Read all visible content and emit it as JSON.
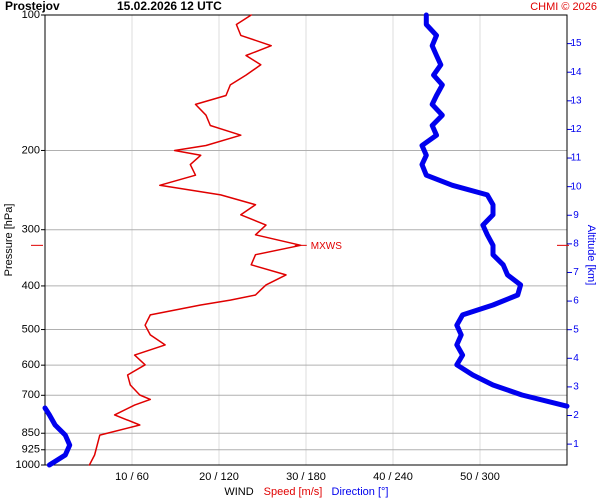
{
  "chart_data": {
    "type": "line",
    "station": "Prostejov",
    "title": "15.02.2026 12 UTC",
    "credit": "CHMI © 2026",
    "ylabel": "Pressure [hPa]",
    "y2label": "Altitude [km]",
    "xlabel": "WIND",
    "xlabel_speed": "Speed [m/s]",
    "xlabel_direction": "Direction [°]",
    "ylim": [
      1000,
      100
    ],
    "log_y": true,
    "yticks": [
      100,
      200,
      300,
      400,
      500,
      600,
      700,
      850,
      925,
      1000
    ],
    "y2lim": [
      0.27,
      16.0
    ],
    "y2ticks": [
      1,
      2,
      3,
      4,
      5,
      6,
      7,
      8,
      9,
      10,
      11,
      12,
      13,
      14,
      15
    ],
    "xlim": [
      0,
      60
    ],
    "x2lim": [
      0,
      360
    ],
    "xticks": [
      {
        "value": 10,
        "label": "10 / 60"
      },
      {
        "value": 20,
        "label": "20 / 120"
      },
      {
        "value": 30,
        "label": "30 / 180"
      },
      {
        "value": 40,
        "label": "40 / 240"
      },
      {
        "value": 50,
        "label": "50 / 300"
      }
    ],
    "grid": true,
    "annotation": {
      "text": "MXWS",
      "pressure": 325,
      "speed": 29.4
    },
    "series": [
      {
        "name": "Speed [m/s]",
        "color": "#e00000",
        "axis": "x",
        "pressure": [
          1000,
          950,
          903,
          858,
          815,
          774,
          736,
          715,
          699,
          664,
          631,
          599,
          570,
          541,
          514,
          489,
          464,
          441,
          430,
          419,
          408,
          398,
          378,
          359,
          341,
          325,
          308,
          293,
          278,
          264,
          251,
          239,
          227,
          215,
          205,
          200,
          195,
          185,
          176,
          167,
          158,
          151,
          143,
          136,
          129,
          123,
          117,
          111,
          105,
          100
        ],
        "values": [
          5.1,
          5.7,
          6.0,
          6.3,
          10.9,
          8.0,
          10.3,
          12.1,
          10.9,
          9.8,
          9.5,
          11.5,
          10.3,
          13.8,
          12.1,
          11.5,
          12.1,
          17.9,
          21.3,
          24.2,
          24.8,
          25.4,
          27.7,
          23.7,
          24.2,
          29.4,
          24.2,
          25.4,
          22.5,
          24.2,
          20.2,
          13.2,
          17.3,
          16.7,
          17.9,
          14.9,
          18.5,
          22.5,
          19.0,
          18.5,
          17.3,
          20.8,
          21.3,
          23.1,
          24.8,
          23.1,
          26.0,
          22.5,
          22.0,
          23.7
        ]
      },
      {
        "name": "Direction [°]",
        "color": "#0000ee",
        "axis": "x2",
        "pressure": [
          1000,
          950,
          903,
          858,
          815,
          774,
          747,
          745,
          740,
          699,
          664,
          631,
          599,
          570,
          541,
          514,
          489,
          464,
          441,
          419,
          398,
          378,
          359,
          341,
          325,
          308,
          293,
          278,
          264,
          251,
          239,
          227,
          215,
          205,
          195,
          185,
          176,
          167,
          158,
          151,
          143,
          136,
          129,
          123,
          117,
          111,
          105,
          100
        ],
        "values": [
          3,
          14,
          17,
          14,
          7,
          3,
          0,
          null,
          360,
          329,
          309,
          295,
          284,
          288,
          284,
          287,
          284,
          288,
          309,
          326,
          328,
          319,
          316,
          309,
          309,
          305,
          302,
          309,
          309,
          305,
          281,
          263,
          260,
          263,
          260,
          270,
          267,
          274,
          267,
          270,
          274,
          268,
          273,
          270,
          267,
          270,
          263,
          263
        ]
      }
    ]
  }
}
